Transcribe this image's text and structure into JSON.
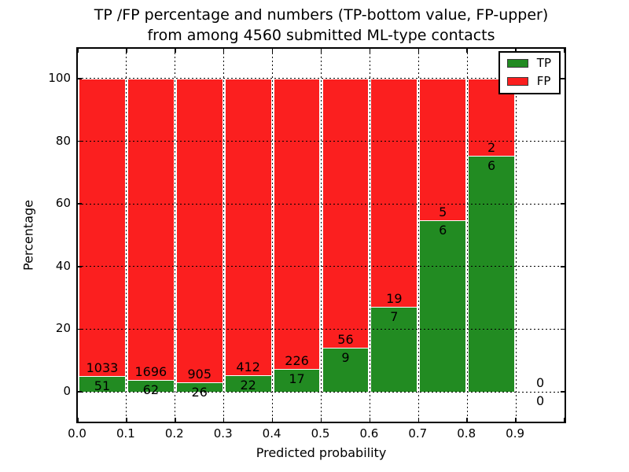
{
  "figure": {
    "title_line1": "TP /FP percentage and numbers (TP-bottom value, FP-upper)",
    "title_line2": "from among 4560 submitted ML-type contacts",
    "xlabel": "Predicted probability",
    "ylabel": "Percentage"
  },
  "legend": {
    "items": [
      {
        "label": "TP",
        "color": "#228B22"
      },
      {
        "label": "FP",
        "color": "#FB1F1F"
      }
    ]
  },
  "chart_data": {
    "type": "bar",
    "stacked": true,
    "normalized_to_percent": true,
    "title": "TP /FP percentage and numbers (TP-bottom value, FP-upper) from among 4560 submitted ML-type contacts",
    "xlabel": "Predicted probability",
    "ylabel": "Percentage",
    "xlim": [
      0.0,
      1.0
    ],
    "ylim": [
      -9.5,
      109.5
    ],
    "xtick_labels": [
      "0.0",
      "0.1",
      "0.2",
      "0.3",
      "0.4",
      "0.5",
      "0.6",
      "0.7",
      "0.8",
      "0.9"
    ],
    "yticks": [
      0,
      20,
      40,
      60,
      80,
      100
    ],
    "grid": "dotted",
    "legend_position": "upper right",
    "bin_width": 0.1,
    "total_contacts": 4560,
    "categories": [
      "0.0",
      "0.1",
      "0.2",
      "0.3",
      "0.4",
      "0.5",
      "0.6",
      "0.7",
      "0.8",
      "0.9"
    ],
    "series": [
      {
        "name": "TP",
        "color": "#228B22",
        "values": [
          51,
          62,
          26,
          22,
          17,
          9,
          7,
          6,
          6,
          0
        ]
      },
      {
        "name": "FP",
        "color": "#FB1F1F",
        "values": [
          1033,
          1696,
          905,
          412,
          226,
          56,
          19,
          5,
          2,
          0
        ]
      }
    ],
    "bins": [
      {
        "x_start": 0.0,
        "tp": 51,
        "fp": 1033
      },
      {
        "x_start": 0.1,
        "tp": 62,
        "fp": 1696
      },
      {
        "x_start": 0.2,
        "tp": 26,
        "fp": 905
      },
      {
        "x_start": 0.3,
        "tp": 22,
        "fp": 412
      },
      {
        "x_start": 0.4,
        "tp": 17,
        "fp": 226
      },
      {
        "x_start": 0.5,
        "tp": 9,
        "fp": 56
      },
      {
        "x_start": 0.6,
        "tp": 7,
        "fp": 19
      },
      {
        "x_start": 0.7,
        "tp": 6,
        "fp": 5
      },
      {
        "x_start": 0.8,
        "tp": 6,
        "fp": 2
      },
      {
        "x_start": 0.9,
        "tp": 0,
        "fp": 0
      }
    ]
  }
}
